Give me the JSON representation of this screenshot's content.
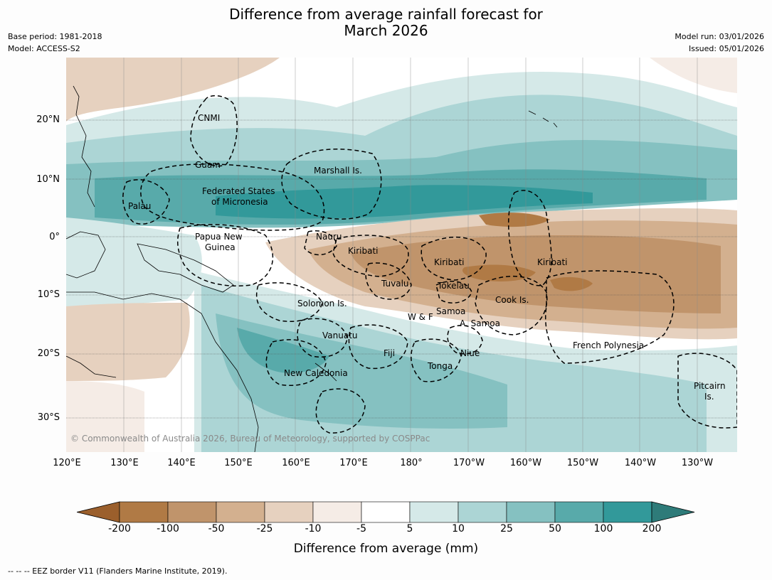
{
  "title_line1": "Difference from average rainfall forecast for",
  "title_line2": "March 2026",
  "meta": {
    "base_period": "Base period: 1981-2018",
    "model": "Model: ACCESS-S2",
    "model_run": "Model run: 03/01/2026",
    "issued": "Issued: 05/01/2026"
  },
  "lat_labels": [
    "20°N",
    "10°N",
    "0°",
    "10°S",
    "20°S",
    "30°S"
  ],
  "lon_labels": [
    "120°E",
    "130°E",
    "140°E",
    "150°E",
    "160°E",
    "170°E",
    "180°",
    "170°W",
    "160°W",
    "150°W",
    "140°W",
    "130°W"
  ],
  "places": {
    "cnmi": "CNMI",
    "guam": "Guam",
    "marshall": "Marshall Is.",
    "fsm1": "Federated States",
    "fsm2": "of Micronesia",
    "palau": "Palau",
    "png1": "Papua New",
    "png2": "Guinea",
    "nauru": "Nauru",
    "kiribati_w": "Kiribati",
    "kiribati_c": "Kiribati",
    "kiribati_e": "Kiribati",
    "tuvalu": "Tuvalu",
    "tokelau": "Tokelau",
    "cook": "Cook Is.",
    "solomon": "Solomon Is.",
    "wf": "W & F",
    "samoa": "Samoa",
    "asamoa": "A. Samoa",
    "vanuatu": "Vanuatu",
    "fiji": "Fiji",
    "niue": "Niue",
    "tonga": "Tonga",
    "newcal": "New Caledonia",
    "frpoly": "French Polynesia",
    "pitcairn1": "Pitcairn",
    "pitcairn2": "Is."
  },
  "copyright": "© Commonwealth of Australia 2026, Bureau of Meteorology, supported by COSPPac",
  "colorbar": {
    "title": "Difference from average (mm)",
    "ticks": [
      "-200",
      "-100",
      "-50",
      "-25",
      "-10",
      "-5",
      "5",
      "10",
      "25",
      "50",
      "100",
      "200"
    ],
    "colors": [
      "#9b5f2c",
      "#b07a45",
      "#c0946b",
      "#d3b08f",
      "#e6d1bf",
      "#f5ece6",
      "#ffffff",
      "#d5e9e8",
      "#acd5d5",
      "#85c1c1",
      "#58aaaa",
      "#32999a",
      "#2e7b79"
    ]
  },
  "footnote": "--  --  -- EEZ border V11 (Flanders Marine Institute, 2019)."
}
